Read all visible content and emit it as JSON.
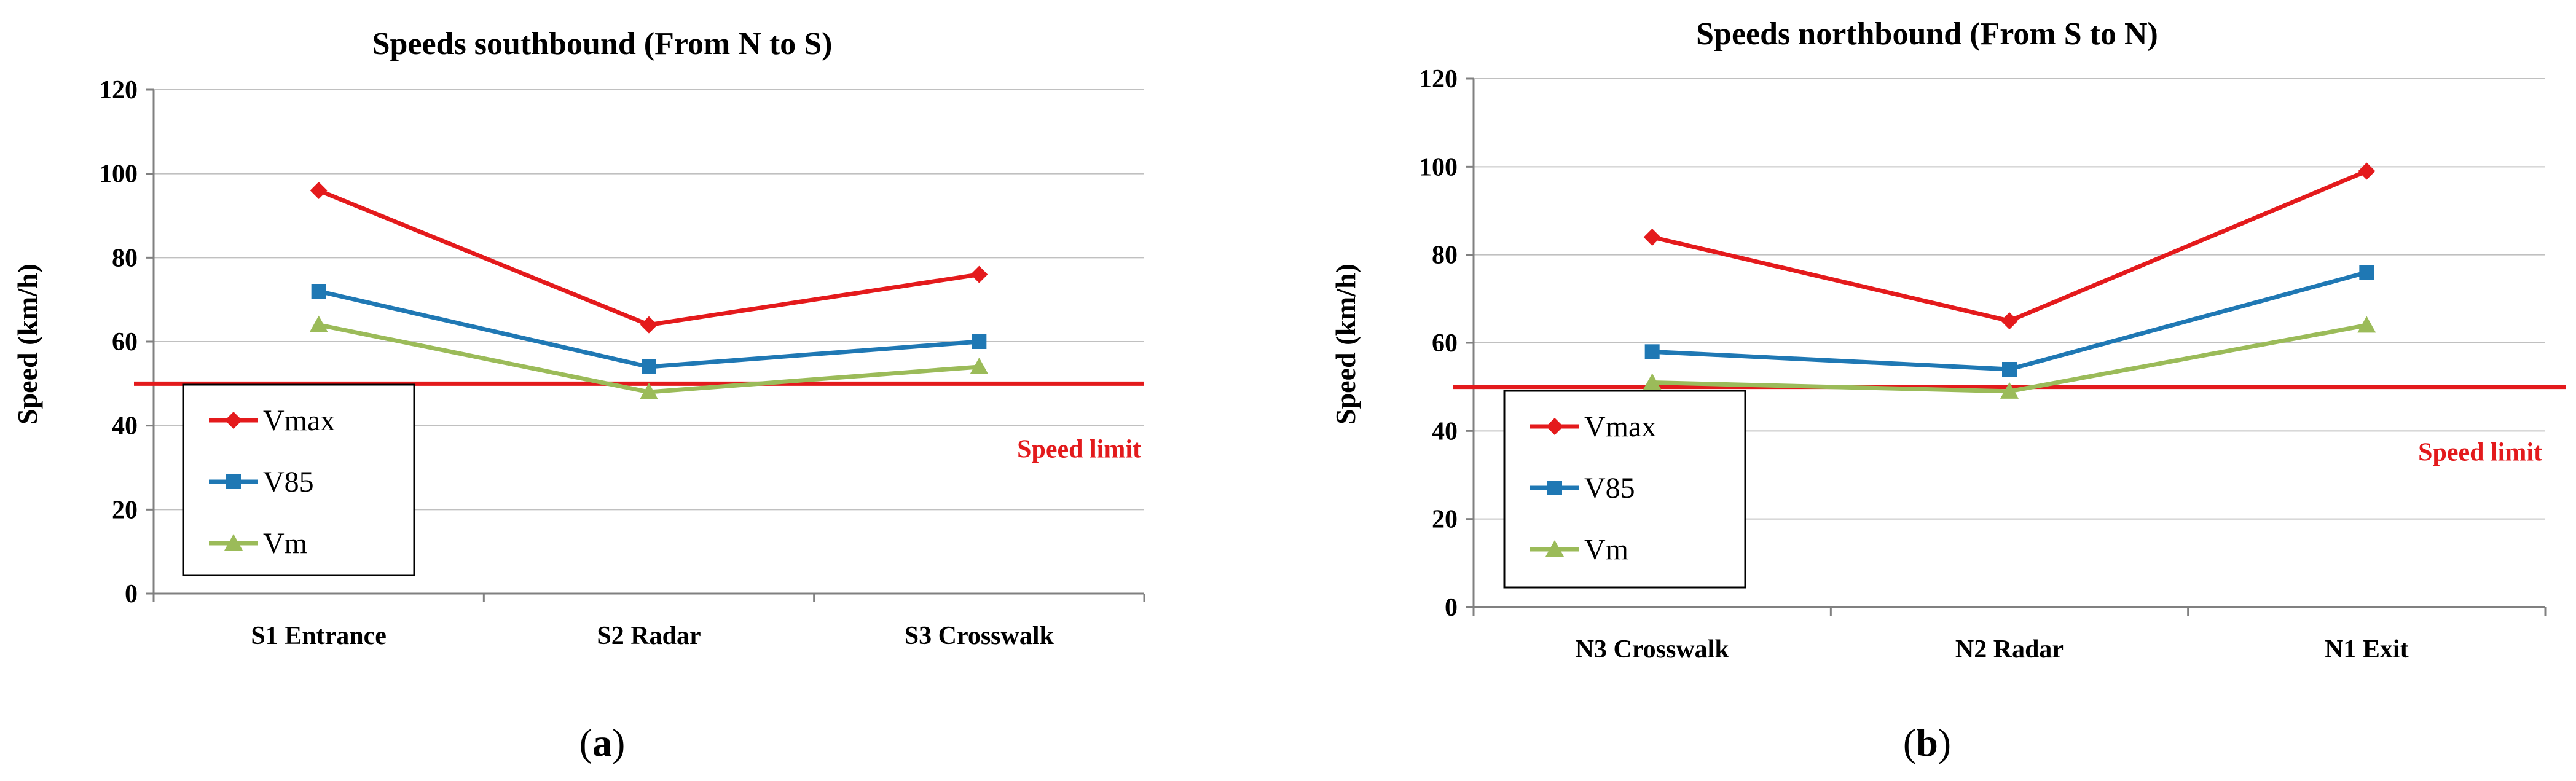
{
  "colors": {
    "vmax": "#e41a1c",
    "v85": "#1f78b4",
    "vm": "#9bbb59",
    "limit": "#e31a1c",
    "grid": "#c0c0c0"
  },
  "chart_data": [
    {
      "type": "line",
      "title": "Speeds southbound (From N to S)",
      "ylabel": "Speed (km/h)",
      "xlabel": "",
      "categories": [
        "S1 Entrance",
        "S2 Radar",
        "S3 Crosswalk"
      ],
      "series": [
        {
          "name": "Vmax",
          "values": [
            96,
            64,
            76
          ]
        },
        {
          "name": "V85",
          "values": [
            72,
            54,
            60
          ]
        },
        {
          "name": "Vm",
          "values": [
            64,
            48,
            54
          ]
        }
      ],
      "ylim": [
        0,
        120
      ],
      "yticks": [
        "0",
        "20",
        "40",
        "60",
        "80",
        "100",
        "120"
      ],
      "speed_limit": {
        "value": 50,
        "label": "Speed limit"
      },
      "grid": true,
      "legend_position": "bottom-left",
      "panel_label": {
        "open": "(",
        "letter": "a",
        "close": ")"
      }
    },
    {
      "type": "line",
      "title": "Speeds northbound (From S to N)",
      "ylabel": "Speed (km/h)",
      "xlabel": "",
      "categories": [
        "N3 Crosswalk",
        "N2 Radar",
        "N1 Exit"
      ],
      "series": [
        {
          "name": "Vmax",
          "values": [
            84,
            65,
            99
          ]
        },
        {
          "name": "V85",
          "values": [
            58,
            54,
            76
          ]
        },
        {
          "name": "Vm",
          "values": [
            51,
            49,
            64
          ]
        }
      ],
      "ylim": [
        0,
        120
      ],
      "yticks": [
        "0",
        "20",
        "40",
        "60",
        "80",
        "100",
        "120"
      ],
      "speed_limit": {
        "value": 50,
        "label": "Speed limit"
      },
      "grid": true,
      "legend_position": "bottom-left",
      "panel_label": {
        "open": "(",
        "letter": "b",
        "close": ")"
      }
    }
  ]
}
